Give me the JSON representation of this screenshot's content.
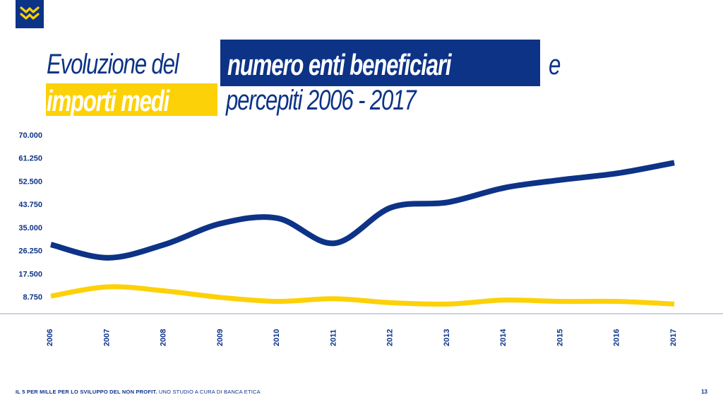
{
  "logo": {
    "icon": "banca-etica-logo-icon",
    "colors": {
      "bg": "#0d3387",
      "mark": "#fdd108"
    }
  },
  "title": {
    "part1": "Evoluzione del",
    "highlight_blue": "numero enti  beneficiari",
    "part2": "e",
    "highlight_yellow": "importi medi",
    "part3": "percepiti 2006 - 2017"
  },
  "colors": {
    "navy": "#0d3387",
    "yellow": "#fdd108",
    "axis": "#0d3387"
  },
  "chart_data": {
    "type": "line",
    "categories": [
      "2006",
      "2007",
      "2008",
      "2009",
      "2010",
      "2011",
      "2012",
      "2013",
      "2014",
      "2015",
      "2016",
      "2017"
    ],
    "yticks": [
      "70.000",
      "61.250",
      "52.500",
      "43.750",
      "35.000",
      "26.250",
      "17.500",
      "8.750"
    ],
    "ylim": [
      0,
      70000
    ],
    "grid": false,
    "series": [
      {
        "color": "#0d3387",
        "values": [
          28500,
          23500,
          28500,
          36500,
          38500,
          29000,
          42500,
          44500,
          50000,
          53000,
          55500,
          59500
        ]
      },
      {
        "color": "#fdd108",
        "values": [
          9000,
          12500,
          11000,
          8500,
          7000,
          8000,
          6500,
          6000,
          7500,
          7000,
          7000,
          6000
        ]
      }
    ]
  },
  "footer": {
    "bold": "IL 5 PER MILLE PER LO SVILUPPO DEL NON PROFIT.",
    "rest": " UNO STUDIO A CURA DI BANCA ETICA",
    "page": "13"
  }
}
